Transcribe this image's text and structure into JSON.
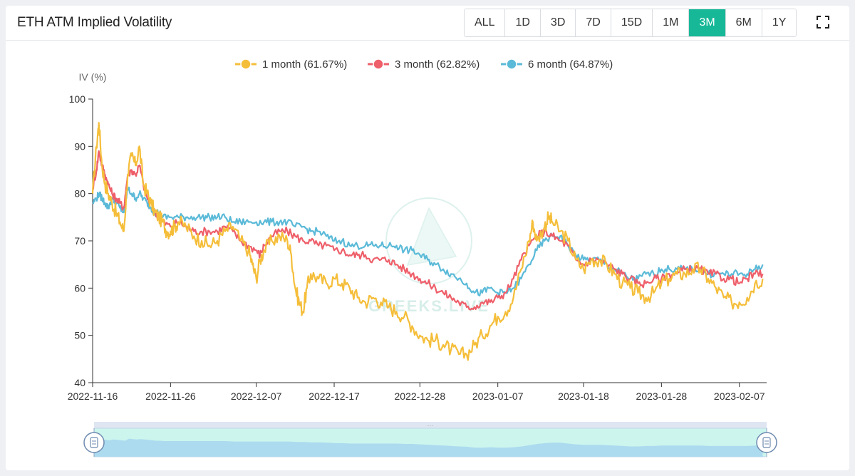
{
  "header": {
    "title": "ETH ATM Implied Volatility",
    "ranges": [
      "ALL",
      "1D",
      "3D",
      "7D",
      "15D",
      "1M",
      "3M",
      "6M",
      "1Y"
    ],
    "active_range": "3M",
    "fullscreen_icon": "fullscreen-icon"
  },
  "watermark": {
    "text": "GREEKS.LIVE"
  },
  "colors": {
    "accent": "#17b898",
    "one_month": "#f5be3a",
    "three_month": "#ee5f6a",
    "six_month": "#5bbad8"
  },
  "chart_data": {
    "type": "line",
    "title": "ETH ATM Implied Volatility",
    "ylabel": "IV (%)",
    "xlabel": "",
    "ylim": [
      40,
      100
    ],
    "yticks": [
      40,
      50,
      60,
      70,
      80,
      90,
      100
    ],
    "xlim": [
      0,
      86.5
    ],
    "xticks": [
      {
        "x": 0,
        "label": "2022-11-16"
      },
      {
        "x": 10,
        "label": "2022-11-26"
      },
      {
        "x": 21,
        "label": "2022-12-07"
      },
      {
        "x": 31,
        "label": "2022-12-17"
      },
      {
        "x": 42,
        "label": "2022-12-28"
      },
      {
        "x": 52,
        "label": "2023-01-07"
      },
      {
        "x": 63,
        "label": "2023-01-18"
      },
      {
        "x": 73,
        "label": "2023-01-28"
      },
      {
        "x": 83,
        "label": "2023-02-07"
      }
    ],
    "legend_position": "top-center",
    "series": [
      {
        "name": "1 month",
        "legend": "1 month (61.67%)",
        "color": "#f5be3a",
        "points": [
          [
            0,
            80
          ],
          [
            0.5,
            90
          ],
          [
            0.8,
            95
          ],
          [
            1.2,
            86
          ],
          [
            1.6,
            82
          ],
          [
            2,
            80
          ],
          [
            2.5,
            78
          ],
          [
            3,
            76
          ],
          [
            3.5,
            74
          ],
          [
            4,
            72
          ],
          [
            4.5,
            84
          ],
          [
            5,
            88
          ],
          [
            5.5,
            86
          ],
          [
            6,
            90
          ],
          [
            6.5,
            82
          ],
          [
            7,
            80
          ],
          [
            7.5,
            78
          ],
          [
            8,
            76
          ],
          [
            8.5,
            75
          ],
          [
            9,
            74
          ],
          [
            9.5,
            72
          ],
          [
            10,
            72
          ],
          [
            10.5,
            73
          ],
          [
            11,
            74
          ],
          [
            12,
            73
          ],
          [
            13,
            71
          ],
          [
            14,
            70
          ],
          [
            15,
            69
          ],
          [
            16,
            70
          ],
          [
            17,
            72
          ],
          [
            18,
            73
          ],
          [
            19,
            70
          ],
          [
            20,
            68
          ],
          [
            20.5,
            65
          ],
          [
            21,
            62
          ],
          [
            21.5,
            66
          ],
          [
            22,
            68
          ],
          [
            23,
            70
          ],
          [
            24,
            71
          ],
          [
            25,
            70
          ],
          [
            25.5,
            67
          ],
          [
            26,
            60
          ],
          [
            26.5,
            57
          ],
          [
            27,
            55
          ],
          [
            27.5,
            60
          ],
          [
            28,
            63
          ],
          [
            29,
            62
          ],
          [
            30,
            61
          ],
          [
            31,
            62
          ],
          [
            32,
            61
          ],
          [
            33,
            60
          ],
          [
            34,
            58
          ],
          [
            35,
            57
          ],
          [
            36,
            58
          ],
          [
            37,
            57
          ],
          [
            38,
            56
          ],
          [
            39,
            55
          ],
          [
            40,
            54
          ],
          [
            41,
            52
          ],
          [
            42,
            50
          ],
          [
            43,
            49
          ],
          [
            44,
            49
          ],
          [
            45,
            48
          ],
          [
            46,
            47
          ],
          [
            47,
            46
          ],
          [
            48,
            46
          ],
          [
            49,
            48
          ],
          [
            50,
            50
          ],
          [
            51,
            52
          ],
          [
            52,
            54
          ],
          [
            53,
            55
          ],
          [
            54,
            58
          ],
          [
            55,
            64
          ],
          [
            56,
            70
          ],
          [
            56.5,
            74
          ],
          [
            57,
            70
          ],
          [
            58,
            73
          ],
          [
            58.5,
            75
          ],
          [
            59,
            74
          ],
          [
            60,
            72
          ],
          [
            61,
            70
          ],
          [
            62,
            66
          ],
          [
            63,
            64
          ],
          [
            64,
            66
          ],
          [
            65,
            66
          ],
          [
            66,
            65
          ],
          [
            67,
            63
          ],
          [
            68,
            61
          ],
          [
            69,
            60
          ],
          [
            70,
            59
          ],
          [
            71,
            58
          ],
          [
            72,
            59
          ],
          [
            73,
            61
          ],
          [
            74,
            62
          ],
          [
            75,
            63
          ],
          [
            76,
            63
          ],
          [
            77,
            64
          ],
          [
            78,
            64
          ],
          [
            79,
            62
          ],
          [
            80,
            60
          ],
          [
            81,
            58
          ],
          [
            82,
            57
          ],
          [
            83,
            57
          ],
          [
            84,
            58
          ],
          [
            85,
            61
          ],
          [
            86,
            62
          ]
        ]
      },
      {
        "name": "3 month",
        "legend": "3 month (62.82%)",
        "color": "#ee5f6a",
        "points": [
          [
            0,
            81
          ],
          [
            0.5,
            85
          ],
          [
            0.8,
            89
          ],
          [
            1.2,
            86
          ],
          [
            1.6,
            84
          ],
          [
            2,
            82
          ],
          [
            2.5,
            80
          ],
          [
            3,
            79
          ],
          [
            3.5,
            78
          ],
          [
            4,
            77
          ],
          [
            4.5,
            84
          ],
          [
            5,
            85
          ],
          [
            5.5,
            84
          ],
          [
            6,
            86
          ],
          [
            6.5,
            82
          ],
          [
            7,
            79
          ],
          [
            7.5,
            78
          ],
          [
            8,
            76
          ],
          [
            8.5,
            75
          ],
          [
            9,
            74
          ],
          [
            10,
            73
          ],
          [
            11,
            74
          ],
          [
            12,
            73
          ],
          [
            13,
            72
          ],
          [
            14,
            72
          ],
          [
            15,
            72
          ],
          [
            16,
            72
          ],
          [
            17,
            73
          ],
          [
            18,
            72
          ],
          [
            19,
            70
          ],
          [
            20,
            69
          ],
          [
            21,
            68
          ],
          [
            21.5,
            67
          ],
          [
            22,
            69
          ],
          [
            23,
            71
          ],
          [
            24,
            72
          ],
          [
            25,
            72
          ],
          [
            26,
            71
          ],
          [
            27,
            70
          ],
          [
            28,
            70
          ],
          [
            29,
            69
          ],
          [
            30,
            69
          ],
          [
            31,
            68
          ],
          [
            32,
            68
          ],
          [
            33,
            67
          ],
          [
            34,
            67
          ],
          [
            35,
            67
          ],
          [
            36,
            66
          ],
          [
            37,
            66
          ],
          [
            38,
            66
          ],
          [
            39,
            65
          ],
          [
            40,
            64
          ],
          [
            41,
            63
          ],
          [
            42,
            62
          ],
          [
            43,
            61
          ],
          [
            44,
            60
          ],
          [
            45,
            59
          ],
          [
            46,
            58
          ],
          [
            47,
            57
          ],
          [
            48,
            56
          ],
          [
            49,
            56
          ],
          [
            50,
            57
          ],
          [
            51,
            57
          ],
          [
            52,
            58
          ],
          [
            53,
            59
          ],
          [
            54,
            62
          ],
          [
            55,
            66
          ],
          [
            56,
            69
          ],
          [
            57,
            71
          ],
          [
            58,
            72
          ],
          [
            59,
            71
          ],
          [
            60,
            70
          ],
          [
            61,
            69
          ],
          [
            62,
            66
          ],
          [
            63,
            65
          ],
          [
            64,
            66
          ],
          [
            65,
            66
          ],
          [
            66,
            65
          ],
          [
            67,
            64
          ],
          [
            68,
            63
          ],
          [
            69,
            62
          ],
          [
            70,
            61
          ],
          [
            71,
            61
          ],
          [
            72,
            62
          ],
          [
            73,
            62
          ],
          [
            74,
            63
          ],
          [
            75,
            63
          ],
          [
            76,
            64
          ],
          [
            77,
            64
          ],
          [
            78,
            64
          ],
          [
            79,
            63
          ],
          [
            80,
            63
          ],
          [
            81,
            62
          ],
          [
            82,
            62
          ],
          [
            83,
            61
          ],
          [
            84,
            62
          ],
          [
            85,
            63
          ],
          [
            86,
            63
          ]
        ]
      },
      {
        "name": "6 month",
        "legend": "6 month (64.87%)",
        "color": "#5bbad8",
        "points": [
          [
            0,
            78
          ],
          [
            0.5,
            79
          ],
          [
            0.8,
            80
          ],
          [
            1.2,
            79
          ],
          [
            1.6,
            78
          ],
          [
            2,
            77
          ],
          [
            2.5,
            79
          ],
          [
            3,
            78
          ],
          [
            3.5,
            77
          ],
          [
            4,
            76
          ],
          [
            4.5,
            81
          ],
          [
            5,
            80
          ],
          [
            5.5,
            79
          ],
          [
            6,
            80
          ],
          [
            6.5,
            79
          ],
          [
            7,
            78
          ],
          [
            7.5,
            77
          ],
          [
            8,
            76
          ],
          [
            8.5,
            76
          ],
          [
            9,
            75
          ],
          [
            10,
            75
          ],
          [
            11,
            75
          ],
          [
            12,
            75
          ],
          [
            13,
            75
          ],
          [
            14,
            75
          ],
          [
            15,
            75
          ],
          [
            16,
            75
          ],
          [
            17,
            75
          ],
          [
            18,
            74
          ],
          [
            19,
            74
          ],
          [
            20,
            74
          ],
          [
            21,
            74
          ],
          [
            22,
            74
          ],
          [
            23,
            74
          ],
          [
            24,
            74
          ],
          [
            25,
            74
          ],
          [
            26,
            73
          ],
          [
            27,
            73
          ],
          [
            28,
            72
          ],
          [
            29,
            72
          ],
          [
            30,
            71
          ],
          [
            31,
            70
          ],
          [
            32,
            70
          ],
          [
            33,
            69
          ],
          [
            34,
            69
          ],
          [
            35,
            69
          ],
          [
            36,
            69
          ],
          [
            37,
            69
          ],
          [
            38,
            69
          ],
          [
            39,
            69
          ],
          [
            40,
            68
          ],
          [
            41,
            68
          ],
          [
            42,
            67
          ],
          [
            43,
            66
          ],
          [
            44,
            65
          ],
          [
            45,
            64
          ],
          [
            46,
            63
          ],
          [
            47,
            62
          ],
          [
            48,
            61
          ],
          [
            49,
            59
          ],
          [
            50,
            59
          ],
          [
            51,
            60
          ],
          [
            52,
            59
          ],
          [
            53,
            59
          ],
          [
            54,
            60
          ],
          [
            55,
            62
          ],
          [
            56,
            65
          ],
          [
            57,
            68
          ],
          [
            58,
            70
          ],
          [
            59,
            71
          ],
          [
            60,
            71
          ],
          [
            61,
            69
          ],
          [
            62,
            67
          ],
          [
            63,
            66
          ],
          [
            64,
            66
          ],
          [
            65,
            66
          ],
          [
            66,
            65
          ],
          [
            67,
            64
          ],
          [
            68,
            63
          ],
          [
            69,
            62
          ],
          [
            70,
            62
          ],
          [
            71,
            63
          ],
          [
            72,
            63
          ],
          [
            73,
            64
          ],
          [
            74,
            64
          ],
          [
            75,
            64
          ],
          [
            76,
            64
          ],
          [
            77,
            64
          ],
          [
            78,
            64
          ],
          [
            79,
            63
          ],
          [
            80,
            63
          ],
          [
            81,
            63
          ],
          [
            82,
            63
          ],
          [
            83,
            63
          ],
          [
            84,
            63
          ],
          [
            85,
            64
          ],
          [
            86,
            65
          ]
        ]
      }
    ],
    "zoom_slider": {
      "start_fraction": 0.0,
      "end_fraction": 1.0
    }
  }
}
